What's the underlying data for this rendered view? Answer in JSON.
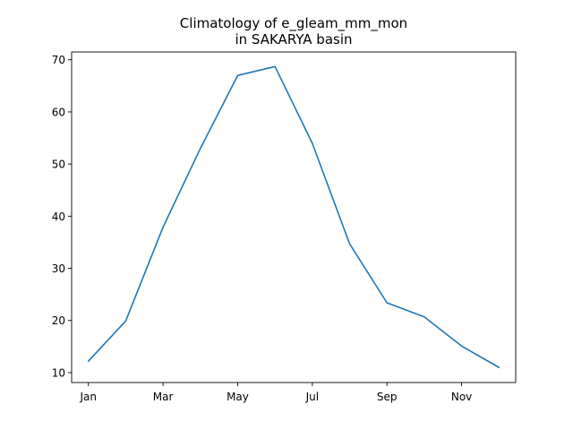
{
  "chart_data": {
    "type": "line",
    "title_line1": "Climatology of e_gleam_mm_mon",
    "title_line2": "in SAKARYA basin",
    "xlabel": "",
    "ylabel": "",
    "x": [
      1,
      2,
      3,
      4,
      5,
      6,
      7,
      8,
      9,
      10,
      11,
      12
    ],
    "x_tick_positions": [
      1,
      3,
      5,
      7,
      9,
      11
    ],
    "x_tick_labels": [
      "Jan",
      "Mar",
      "May",
      "Jul",
      "Sep",
      "Nov"
    ],
    "xlim": [
      0.55,
      12.45
    ],
    "ylim": [
      8.1,
      71.5
    ],
    "y_ticks": [
      10,
      20,
      30,
      40,
      50,
      60,
      70
    ],
    "grid": false,
    "series": [
      {
        "name": "e_gleam_mm_mon",
        "color": "#1f77b4",
        "values": [
          12.2,
          19.9,
          37.9,
          53.0,
          67.0,
          68.7,
          54.0,
          34.7,
          23.4,
          20.7,
          15.1,
          11.0
        ]
      }
    ]
  }
}
